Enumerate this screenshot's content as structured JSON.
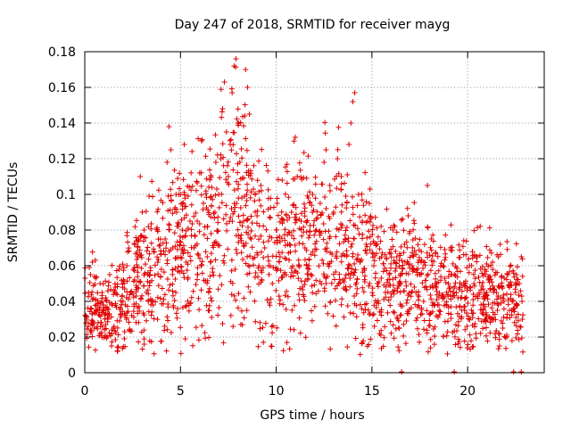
{
  "chart_data": {
    "type": "scatter",
    "title": "Day 247 of 2018, SRMTID for receiver mayg",
    "xlabel": "GPS time / hours",
    "ylabel": "SRMTID / TECUs",
    "xlim": [
      0,
      24
    ],
    "ylim": [
      0,
      0.18
    ],
    "x_ticks": [
      0,
      5,
      10,
      15,
      20
    ],
    "y_ticks": [
      0,
      0.02,
      0.04,
      0.06,
      0.08,
      0.1,
      0.12,
      0.14,
      0.16,
      0.18
    ],
    "x_tick_labels": [
      "0",
      "5",
      "10",
      "15",
      "20"
    ],
    "y_tick_labels": [
      "0",
      "0.02",
      "0.04",
      "0.06",
      "0.08",
      "0.1",
      "0.12",
      "0.14",
      "0.16",
      "0.18"
    ],
    "grid": true,
    "marker": "+",
    "color": "#e00000",
    "series": [
      {
        "name": "SRMTID",
        "points": [
          [
            0.1,
            0.03
          ],
          [
            0.2,
            0.045
          ],
          [
            0.3,
            0.055
          ],
          [
            0.4,
            0.062
          ],
          [
            0.5,
            0.025
          ],
          [
            0.6,
            0.038
          ],
          [
            0.7,
            0.028
          ],
          [
            0.8,
            0.05
          ],
          [
            0.9,
            0.02
          ],
          [
            1.0,
            0.035
          ],
          [
            1.1,
            0.042
          ],
          [
            1.2,
            0.03
          ],
          [
            1.3,
            0.055
          ],
          [
            1.4,
            0.015
          ],
          [
            1.5,
            0.025
          ],
          [
            1.6,
            0.048
          ],
          [
            1.7,
            0.012
          ],
          [
            1.8,
            0.058
          ],
          [
            1.9,
            0.033
          ],
          [
            2.0,
            0.04
          ],
          [
            2.2,
            0.06
          ],
          [
            2.4,
            0.045
          ],
          [
            2.6,
            0.052
          ],
          [
            2.8,
            0.075
          ],
          [
            2.9,
            0.11
          ],
          [
            3.0,
            0.09
          ],
          [
            3.1,
            0.08
          ],
          [
            3.3,
            0.055
          ],
          [
            3.5,
            0.04
          ],
          [
            3.6,
            0.068
          ],
          [
            3.8,
            0.03
          ],
          [
            4.0,
            0.058
          ],
          [
            4.2,
            0.075
          ],
          [
            4.3,
            0.118
          ],
          [
            4.4,
            0.138
          ],
          [
            4.5,
            0.125
          ],
          [
            4.6,
            0.07
          ],
          [
            4.8,
            0.09
          ],
          [
            5.0,
            0.1
          ],
          [
            5.1,
            0.08
          ],
          [
            5.2,
            0.128
          ],
          [
            5.3,
            0.062
          ],
          [
            5.5,
            0.085
          ],
          [
            5.7,
            0.07
          ],
          [
            5.9,
            0.055
          ],
          [
            6.0,
            0.112
          ],
          [
            6.1,
            0.13
          ],
          [
            6.2,
            0.095
          ],
          [
            6.4,
            0.065
          ],
          [
            6.6,
            0.078
          ],
          [
            6.8,
            0.09
          ],
          [
            7.0,
            0.1
          ],
          [
            7.1,
            0.12
          ],
          [
            7.2,
            0.148
          ],
          [
            7.3,
            0.163
          ],
          [
            7.4,
            0.135
          ],
          [
            7.5,
            0.11
          ],
          [
            7.6,
            0.128
          ],
          [
            7.7,
            0.157
          ],
          [
            7.8,
            0.172
          ],
          [
            7.9,
            0.176
          ],
          [
            8.0,
            0.14
          ],
          [
            8.1,
            0.118
          ],
          [
            8.2,
            0.098
          ],
          [
            8.3,
            0.085
          ],
          [
            8.4,
            0.17
          ],
          [
            8.5,
            0.16
          ],
          [
            8.6,
            0.145
          ],
          [
            8.7,
            0.075
          ],
          [
            8.9,
            0.1
          ],
          [
            9.0,
            0.088
          ],
          [
            9.2,
            0.105
          ],
          [
            9.4,
            0.07
          ],
          [
            9.6,
            0.06
          ],
          [
            9.8,
            0.05
          ],
          [
            10.0,
            0.08
          ],
          [
            10.2,
            0.065
          ],
          [
            10.4,
            0.055
          ],
          [
            10.6,
            0.072
          ],
          [
            10.8,
            0.09
          ],
          [
            11.0,
            0.132
          ],
          [
            11.1,
            0.11
          ],
          [
            11.3,
            0.085
          ],
          [
            11.5,
            0.07
          ],
          [
            11.7,
            0.06
          ],
          [
            11.9,
            0.1
          ],
          [
            12.1,
            0.08
          ],
          [
            12.3,
            0.095
          ],
          [
            12.5,
            0.118
          ],
          [
            12.6,
            0.125
          ],
          [
            12.8,
            0.105
          ],
          [
            13.0,
            0.09
          ],
          [
            13.2,
            0.12
          ],
          [
            13.4,
            0.11
          ],
          [
            13.6,
            0.075
          ],
          [
            13.8,
            0.128
          ],
          [
            13.9,
            0.14
          ],
          [
            14.0,
            0.152
          ],
          [
            14.1,
            0.157
          ],
          [
            14.3,
            0.1
          ],
          [
            14.5,
            0.085
          ],
          [
            14.7,
            0.072
          ],
          [
            14.9,
            0.103
          ],
          [
            15.1,
            0.06
          ],
          [
            15.3,
            0.05
          ],
          [
            15.5,
            0.065
          ],
          [
            15.7,
            0.045
          ],
          [
            15.9,
            0.055
          ],
          [
            16.1,
            0.08
          ],
          [
            16.3,
            0.065
          ],
          [
            16.5,
            0.05
          ],
          [
            16.7,
            0.072
          ],
          [
            16.9,
            0.088
          ],
          [
            17.1,
            0.06
          ],
          [
            17.3,
            0.045
          ],
          [
            17.5,
            0.055
          ],
          [
            17.7,
            0.04
          ],
          [
            17.9,
            0.105
          ],
          [
            18.1,
            0.075
          ],
          [
            18.3,
            0.05
          ],
          [
            18.5,
            0.038
          ],
          [
            18.7,
            0.06
          ],
          [
            18.9,
            0.045
          ],
          [
            19.1,
            0.07
          ],
          [
            19.3,
            0.055
          ],
          [
            19.5,
            0.042
          ],
          [
            19.7,
            0.035
          ],
          [
            19.9,
            0.05
          ],
          [
            20.1,
            0.06
          ],
          [
            20.3,
            0.044
          ],
          [
            20.5,
            0.065
          ],
          [
            20.7,
            0.038
          ],
          [
            20.9,
            0.03
          ],
          [
            21.1,
            0.052
          ],
          [
            21.3,
            0.062
          ],
          [
            21.5,
            0.045
          ],
          [
            21.7,
            0.072
          ],
          [
            21.9,
            0.04
          ],
          [
            22.1,
            0.055
          ],
          [
            22.3,
            0.035
          ],
          [
            22.5,
            0.045
          ],
          [
            22.6,
            0.038
          ],
          [
            22.7,
            0.05
          ],
          [
            22.8,
            0.065
          ]
        ]
      }
    ],
    "extra_points_generator": {
      "count": 1900,
      "seed": 247,
      "baseline_by_hour": [
        [
          0,
          0.035
        ],
        [
          1,
          0.033
        ],
        [
          2,
          0.04
        ],
        [
          3,
          0.055
        ],
        [
          4,
          0.06
        ],
        [
          5,
          0.068
        ],
        [
          6,
          0.072
        ],
        [
          7,
          0.08
        ],
        [
          8,
          0.09
        ],
        [
          9,
          0.078
        ],
        [
          10,
          0.068
        ],
        [
          11,
          0.07
        ],
        [
          12,
          0.072
        ],
        [
          13,
          0.075
        ],
        [
          14,
          0.068
        ],
        [
          15,
          0.055
        ],
        [
          16,
          0.052
        ],
        [
          17,
          0.055
        ],
        [
          18,
          0.048
        ],
        [
          19,
          0.045
        ],
        [
          20,
          0.045
        ],
        [
          21,
          0.043
        ],
        [
          22,
          0.04
        ],
        [
          23,
          0.038
        ]
      ],
      "spread": 0.65
    },
    "zero_markers_x": [
      16.55,
      19.3,
      22.4,
      22.8
    ]
  }
}
